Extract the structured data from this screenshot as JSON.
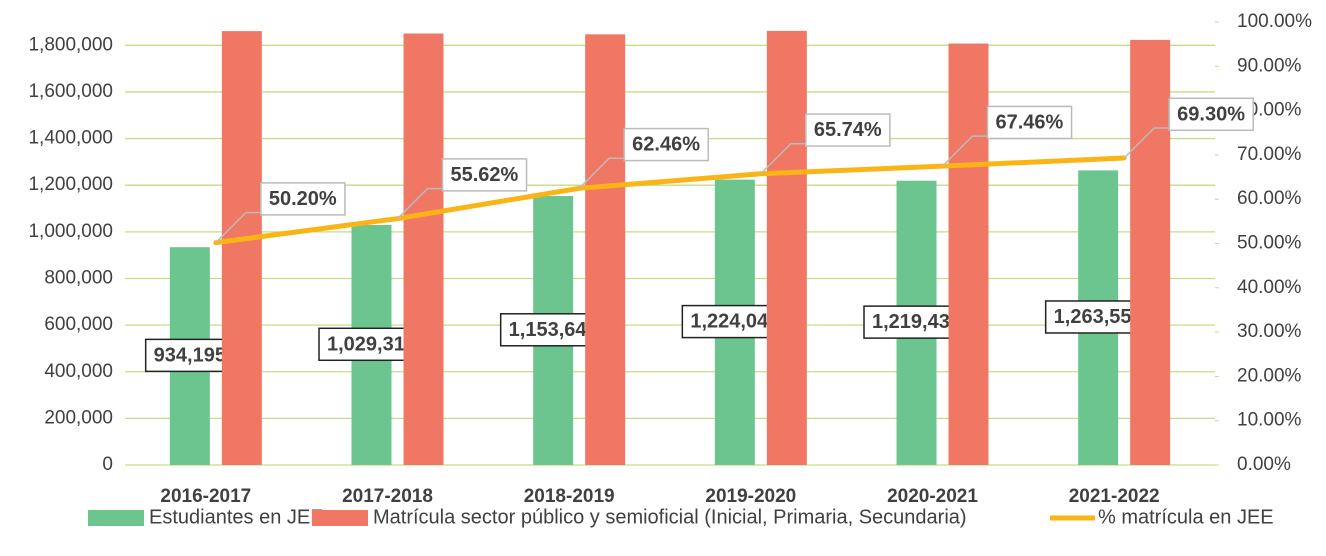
{
  "chart_data": {
    "type": "bar_line",
    "categories": [
      "2016-2017",
      "2017-2018",
      "2018-2019",
      "2019-2020",
      "2020-2021",
      "2021-2022"
    ],
    "series": [
      {
        "name": "Estudiantes en JEE",
        "color": "#6cc58f",
        "values": [
          934195,
          1029313,
          1153640,
          1224042,
          1219434,
          1263557
        ],
        "value_labels": [
          "934,195",
          "1,029,313",
          "1,153,640",
          "1,224,042",
          "1,219,434",
          "1,263,557"
        ]
      },
      {
        "name": "Matrícula sector público y semioficial (Inicial, Primaria, Secundaria)",
        "color": "#f07764",
        "values": [
          1860946,
          1850617,
          1847006,
          1861944,
          1807640,
          1823315
        ]
      },
      {
        "name": "% matrícula en JEE",
        "color": "#fbb415",
        "axis": "y2",
        "type": "line",
        "values": [
          50.2,
          55.62,
          62.46,
          65.74,
          67.46,
          69.3
        ],
        "value_labels": [
          "50.20%",
          "55.62%",
          "62.46%",
          "65.74%",
          "67.46%",
          "69.30%"
        ]
      }
    ],
    "ylim": [
      0,
      1900000
    ],
    "yticks": [
      0,
      {
        "value": 200000,
        "label": "200,000"
      },
      {
        "value": 400000,
        "label": "400,000"
      },
      {
        "value": 600000,
        "label": "600,000"
      },
      {
        "value": 800000,
        "label": "800,000"
      },
      {
        "value": 1000000,
        "label": "1,000,000"
      },
      {
        "value": 1200000,
        "label": "1,200,000"
      },
      {
        "value": 1400000,
        "label": "1,400,000"
      },
      {
        "value": 1600000,
        "label": "1,600,000"
      },
      {
        "value": 1800000,
        "label": "1,800,000"
      }
    ],
    "y2lim": [
      0,
      100
    ],
    "y2ticks": [
      {
        "value": 0,
        "label": "0.00%"
      },
      {
        "value": 10,
        "label": "10.00%"
      },
      {
        "value": 20,
        "label": "20.00%"
      },
      {
        "value": 30,
        "label": "30.00%"
      },
      {
        "value": 40,
        "label": "40.00%"
      },
      {
        "value": 50,
        "label": "50.00%"
      },
      {
        "value": 60,
        "label": "60.00%"
      },
      {
        "value": 70,
        "label": "70.00%"
      },
      {
        "value": 80,
        "label": "80.00%"
      },
      {
        "value": 90,
        "label": "90.00%"
      },
      {
        "value": 100,
        "label": "100.00%"
      }
    ],
    "grid": true,
    "legend": "bottom"
  }
}
